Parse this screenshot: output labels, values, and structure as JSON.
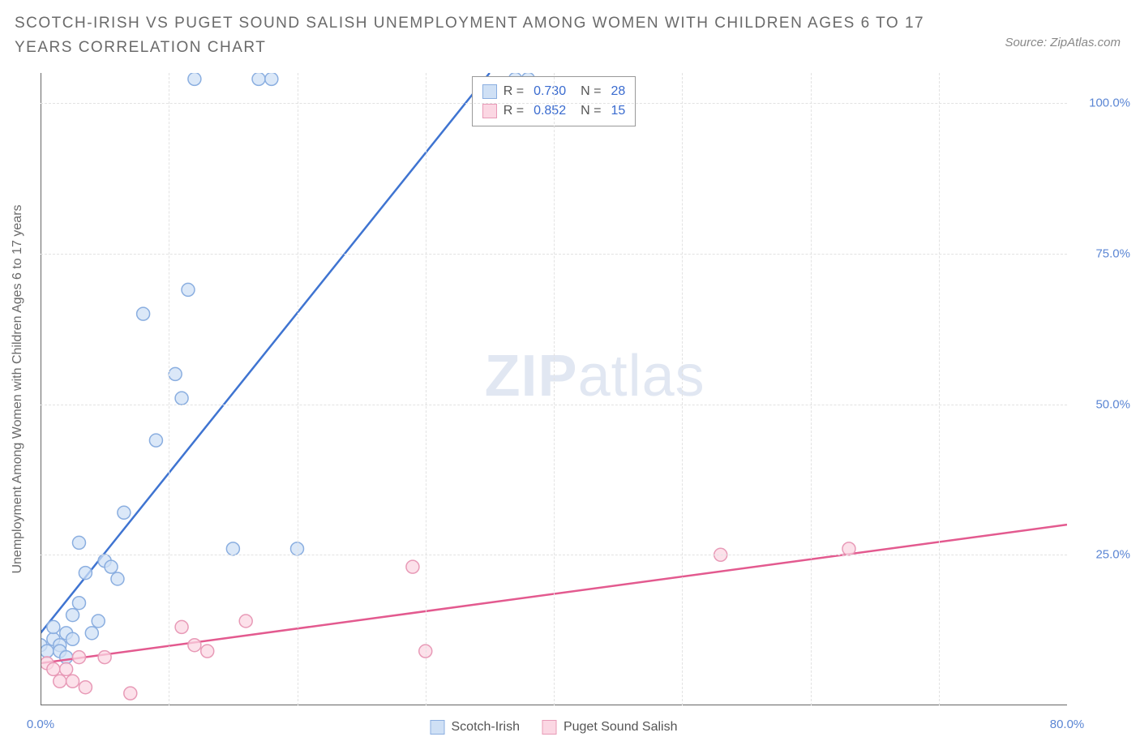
{
  "title": "SCOTCH-IRISH VS PUGET SOUND SALISH UNEMPLOYMENT AMONG WOMEN WITH CHILDREN AGES 6 TO 17 YEARS CORRELATION CHART",
  "source": "Source: ZipAtlas.com",
  "watermark_a": "ZIP",
  "watermark_b": "atlas",
  "chart": {
    "type": "scatter-correlation",
    "y_label": "Unemployment Among Women with Children Ages 6 to 17 years",
    "xlim": [
      0,
      80
    ],
    "ylim": [
      0,
      105
    ],
    "x_ticks": [
      0,
      80
    ],
    "x_tick_labels": [
      "0.0%",
      "80.0%"
    ],
    "y_ticks": [
      25,
      50,
      75,
      100
    ],
    "y_tick_labels": [
      "25.0%",
      "50.0%",
      "75.0%",
      "100.0%"
    ],
    "grid_color": "#e2e2e2",
    "axis_color": "#666666",
    "background_color": "#ffffff",
    "series": [
      {
        "name": "Scotch-Irish",
        "color_fill": "#cfe0f5",
        "color_stroke": "#8aaee0",
        "line_color": "#3f74d1",
        "marker_radius": 8,
        "R": "0.730",
        "N": "28",
        "trend": {
          "x1": 0,
          "y1": 12,
          "x2": 35,
          "y2": 105
        },
        "points": [
          [
            0,
            10
          ],
          [
            0.5,
            9
          ],
          [
            1,
            11
          ],
          [
            1,
            13
          ],
          [
            1.5,
            10
          ],
          [
            1.5,
            9
          ],
          [
            2,
            8
          ],
          [
            2,
            12
          ],
          [
            2.5,
            11
          ],
          [
            2.5,
            15
          ],
          [
            3,
            17
          ],
          [
            3,
            27
          ],
          [
            3.5,
            22
          ],
          [
            4,
            12
          ],
          [
            4.5,
            14
          ],
          [
            5,
            24
          ],
          [
            5.5,
            23
          ],
          [
            6,
            21
          ],
          [
            6.5,
            32
          ],
          [
            8,
            65
          ],
          [
            9,
            44
          ],
          [
            10.5,
            55
          ],
          [
            11,
            51
          ],
          [
            11.5,
            69
          ],
          [
            12,
            104
          ],
          [
            15,
            26
          ],
          [
            17,
            104
          ],
          [
            18,
            104
          ],
          [
            20,
            26
          ],
          [
            37,
            104
          ],
          [
            38,
            104
          ]
        ]
      },
      {
        "name": "Puget Sound Salish",
        "color_fill": "#fbd7e3",
        "color_stroke": "#e89ab7",
        "line_color": "#e35a8f",
        "marker_radius": 8,
        "R": "0.852",
        "N": "15",
        "trend": {
          "x1": 0,
          "y1": 7,
          "x2": 80,
          "y2": 30
        },
        "points": [
          [
            0.5,
            7
          ],
          [
            1,
            6
          ],
          [
            1.5,
            4
          ],
          [
            2,
            6
          ],
          [
            2.5,
            4
          ],
          [
            3,
            8
          ],
          [
            3.5,
            3
          ],
          [
            5,
            8
          ],
          [
            7,
            2
          ],
          [
            11,
            13
          ],
          [
            12,
            10
          ],
          [
            13,
            9
          ],
          [
            16,
            14
          ],
          [
            30,
            9
          ],
          [
            29,
            23
          ],
          [
            53,
            25
          ],
          [
            63,
            26
          ]
        ]
      }
    ],
    "legend_stats_pos": {
      "left_pct": 42,
      "top_pct": 0.5
    },
    "bottom_legend": [
      "Scotch-Irish",
      "Puget Sound Salish"
    ]
  }
}
